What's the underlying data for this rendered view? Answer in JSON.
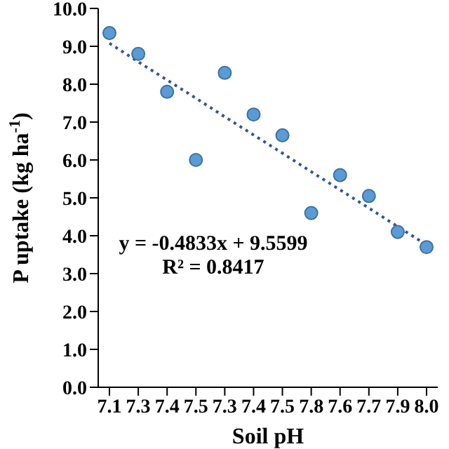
{
  "chart_data": {
    "type": "scatter",
    "xlabel": "Soil pH",
    "ylabel": "P uptake (kg ha$^{-1}$)",
    "categories": [
      "7.1",
      "7.3",
      "7.4",
      "7.5",
      "7.3",
      "7.4",
      "7.5",
      "7.8",
      "7.6",
      "7.7",
      "7.9",
      "8.0"
    ],
    "series": [
      {
        "color": "#5b9bd5",
        "values": [
          9.35,
          8.8,
          7.8,
          6.0,
          8.3,
          7.2,
          6.65,
          4.6,
          5.6,
          5.05,
          4.1,
          3.7
        ]
      },
      {
        "type": "line",
        "color": "#2f5597",
        "line_style": "dotted",
        "marker": "none",
        "values": [
          9.08,
          8.59,
          8.11,
          7.63,
          7.14,
          6.66,
          6.18,
          5.69,
          5.21,
          4.73,
          4.24,
          3.76
        ]
      }
    ],
    "ylim": [
      0,
      10
    ],
    "yticks": [
      {
        "value": 0,
        "label": "0.0"
      },
      {
        "value": 1,
        "label": "1.0"
      },
      {
        "value": 2,
        "label": "2.0"
      },
      {
        "value": 3,
        "label": "3.0"
      },
      {
        "value": 4,
        "label": "4.0"
      },
      {
        "value": 5,
        "label": "5.0"
      },
      {
        "value": 6,
        "label": "6.0"
      },
      {
        "value": 7,
        "label": "7.0"
      },
      {
        "value": 8,
        "label": "8.0"
      },
      {
        "value": 9,
        "label": "9.0"
      },
      {
        "value": 10,
        "label": "10.0"
      }
    ],
    "annotations": [
      "y = -0.4833x + 9.5599",
      "R² = 0.8417"
    ],
    "grid": false,
    "legend": false,
    "marker": "circle"
  }
}
